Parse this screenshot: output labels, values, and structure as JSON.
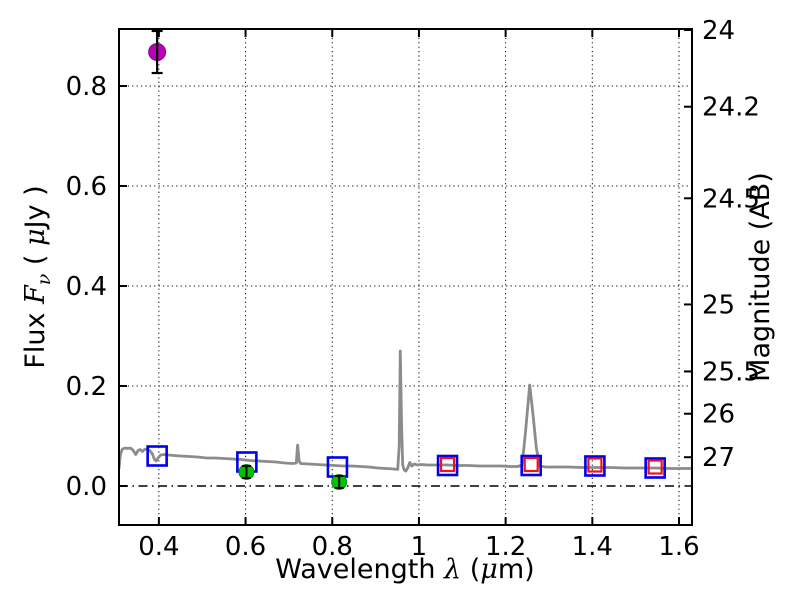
{
  "figure": {
    "background": "#ffffff"
  },
  "chart_data": {
    "type": "line",
    "title": "",
    "xlabel_segments": [
      {
        "text": "Wavelength ",
        "style": "normal"
      },
      {
        "text": "λ",
        "style": "math"
      },
      {
        "text": " (",
        "style": "normal"
      },
      {
        "text": "μ",
        "style": "math"
      },
      {
        "text": "m)",
        "style": "normal"
      }
    ],
    "ylabel_left_segments": [
      {
        "text": "Flux ",
        "style": "normal"
      },
      {
        "text": "F",
        "style": "math"
      },
      {
        "text": "ν",
        "style": "mathsub"
      },
      {
        "text": " ( ",
        "style": "normal"
      },
      {
        "text": "μ",
        "style": "math"
      },
      {
        "text": "Jy )",
        "style": "normal"
      }
    ],
    "ylabel_right_segments": [
      {
        "text": "Magnitude (AB)",
        "style": "normal"
      }
    ],
    "xlim": [
      0.308,
      1.63
    ],
    "ylim_flux": [
      -0.078,
      0.914
    ],
    "x_ticks": [
      0.4,
      0.6,
      0.8,
      1,
      1.2,
      1.4,
      1.6
    ],
    "x_tick_labels": [
      "0.4",
      "0.6",
      "0.8",
      "1",
      "1.2",
      "1.4",
      "1.6"
    ],
    "y_ticks_flux": [
      0.0,
      0.2,
      0.4,
      0.6,
      0.8
    ],
    "y_tick_labels_flux": [
      "0.0",
      "0.2",
      "0.4",
      "0.6",
      "0.8"
    ],
    "y_ticks_mag": [
      24,
      24.2,
      24.5,
      25,
      25.5,
      26,
      27
    ],
    "y_tick_labels_mag": [
      "24",
      "24.2",
      "24.5",
      "25",
      "25.5",
      "26",
      "27"
    ],
    "mag_zeropoint_ujy": 23.9,
    "grid": "dotted",
    "zero_line_style": "dash-dot",
    "colors": {
      "spectrum": "#8c8c8c",
      "model_square": "#0000ee",
      "nir_square": "#ee1122",
      "detection_circle": "#00c300",
      "detection_edge": "#0a8a0a",
      "bright_circle": "#bb00bb",
      "bright_edge": "#8a008a",
      "errorbar": "#000000",
      "grid_line": "#000000",
      "frame": "#000000"
    },
    "series": [
      {
        "name": "model-spectrum",
        "type": "line",
        "points": [
          [
            0.308,
            0.034
          ],
          [
            0.3095,
            0.05
          ],
          [
            0.312,
            0.066
          ],
          [
            0.316,
            0.074
          ],
          [
            0.322,
            0.076
          ],
          [
            0.328,
            0.075
          ],
          [
            0.334,
            0.076
          ],
          [
            0.34,
            0.072
          ],
          [
            0.3465,
            0.063
          ],
          [
            0.352,
            0.071
          ],
          [
            0.357,
            0.073
          ],
          [
            0.362,
            0.069
          ],
          [
            0.367,
            0.073
          ],
          [
            0.373,
            0.074
          ],
          [
            0.379,
            0.071
          ],
          [
            0.385,
            0.064
          ],
          [
            0.39,
            0.053
          ],
          [
            0.3935,
            0.05
          ],
          [
            0.398,
            0.056
          ],
          [
            0.404,
            0.062
          ],
          [
            0.412,
            0.063
          ],
          [
            0.422,
            0.062
          ],
          [
            0.435,
            0.061
          ],
          [
            0.45,
            0.06
          ],
          [
            0.47,
            0.059
          ],
          [
            0.49,
            0.058
          ],
          [
            0.51,
            0.056
          ],
          [
            0.53,
            0.056
          ],
          [
            0.55,
            0.055
          ],
          [
            0.57,
            0.054
          ],
          [
            0.59,
            0.053
          ],
          [
            0.61,
            0.051
          ],
          [
            0.63,
            0.05
          ],
          [
            0.65,
            0.049
          ],
          [
            0.67,
            0.048
          ],
          [
            0.69,
            0.046
          ],
          [
            0.71,
            0.045
          ],
          [
            0.717,
            0.046
          ],
          [
            0.72,
            0.082
          ],
          [
            0.7235,
            0.05
          ],
          [
            0.727,
            0.045
          ],
          [
            0.745,
            0.044
          ],
          [
            0.765,
            0.043
          ],
          [
            0.785,
            0.042
          ],
          [
            0.805,
            0.041
          ],
          [
            0.825,
            0.04
          ],
          [
            0.845,
            0.04
          ],
          [
            0.865,
            0.039
          ],
          [
            0.885,
            0.038
          ],
          [
            0.905,
            0.036
          ],
          [
            0.925,
            0.035
          ],
          [
            0.942,
            0.034
          ],
          [
            0.951,
            0.033
          ],
          [
            0.9545,
            0.08
          ],
          [
            0.957,
            0.27
          ],
          [
            0.96,
            0.12
          ],
          [
            0.9625,
            0.042
          ],
          [
            0.966,
            0.032
          ],
          [
            0.97,
            0.03
          ],
          [
            0.9745,
            0.037
          ],
          [
            0.979,
            0.047
          ],
          [
            0.9835,
            0.04
          ],
          [
            0.989,
            0.044
          ],
          [
            0.996,
            0.042
          ],
          [
            1.005,
            0.043
          ],
          [
            1.02,
            0.042
          ],
          [
            1.04,
            0.042
          ],
          [
            1.065,
            0.042
          ],
          [
            1.09,
            0.041
          ],
          [
            1.115,
            0.041
          ],
          [
            1.14,
            0.04
          ],
          [
            1.165,
            0.04
          ],
          [
            1.19,
            0.04
          ],
          [
            1.21,
            0.039
          ],
          [
            1.228,
            0.039
          ],
          [
            1.238,
            0.042
          ],
          [
            1.246,
            0.11
          ],
          [
            1.2555,
            0.202
          ],
          [
            1.263,
            0.145
          ],
          [
            1.271,
            0.075
          ],
          [
            1.279,
            0.04
          ],
          [
            1.292,
            0.038
          ],
          [
            1.315,
            0.038
          ],
          [
            1.345,
            0.038
          ],
          [
            1.375,
            0.037
          ],
          [
            1.405,
            0.037
          ],
          [
            1.44,
            0.037
          ],
          [
            1.475,
            0.036
          ],
          [
            1.51,
            0.036
          ],
          [
            1.545,
            0.036
          ],
          [
            1.58,
            0.035
          ],
          [
            1.61,
            0.035
          ],
          [
            1.63,
            0.035
          ]
        ]
      },
      {
        "name": "model-photometry-squares",
        "type": "open-square",
        "size": 19,
        "points": [
          [
            0.396,
            0.06
          ],
          [
            0.603,
            0.048
          ],
          [
            0.812,
            0.038
          ],
          [
            1.066,
            0.041
          ],
          [
            1.259,
            0.041
          ],
          [
            1.406,
            0.04
          ],
          [
            1.545,
            0.036
          ]
        ]
      },
      {
        "name": "nir-photometry-squares",
        "type": "open-square-small",
        "size": 13,
        "points": [
          [
            1.066,
            0.041
          ],
          [
            1.259,
            0.041
          ],
          [
            1.406,
            0.04
          ],
          [
            1.545,
            0.036
          ]
        ]
      },
      {
        "name": "optical-detections",
        "type": "filled-circle",
        "size": 15,
        "points": [
          [
            0.602,
            0.028
          ],
          [
            0.816,
            0.008
          ]
        ],
        "yerr": [
          0.012,
          0.012
        ]
      },
      {
        "name": "blue-band-detection",
        "type": "filled-circle-large",
        "size": 17,
        "points": [
          [
            0.396,
            0.868
          ]
        ],
        "yerr": [
          0.042
        ]
      }
    ]
  }
}
